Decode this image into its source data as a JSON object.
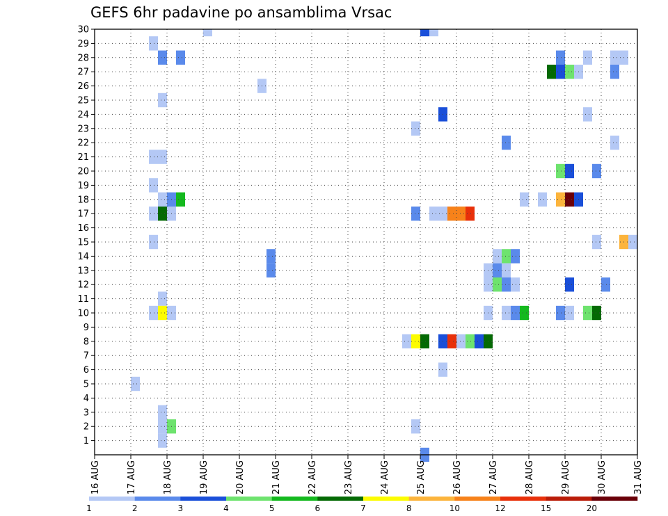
{
  "chart_data": {
    "type": "heatmap",
    "title": "GEFS 6hr padavine po ansamblima Vrsac",
    "x_tick_labels": [
      "16 AUG",
      "17 AUG",
      "18 AUG",
      "19 AUG",
      "20 AUG",
      "21 AUG",
      "22 AUG",
      "23 AUG",
      "24 AUG",
      "25 AUG",
      "26 AUG",
      "27 AUG",
      "28 AUG",
      "29 AUG",
      "30 AUG",
      "31 AUG"
    ],
    "y_tick_labels": [
      "1",
      "2",
      "3",
      "4",
      "5",
      "6",
      "7",
      "8",
      "9",
      "10",
      "11",
      "12",
      "13",
      "14",
      "15",
      "16",
      "17",
      "18",
      "19",
      "20",
      "21",
      "22",
      "23",
      "24",
      "25",
      "26",
      "27",
      "28",
      "29",
      "30"
    ],
    "x_range_days": [
      16,
      31
    ],
    "y_range": [
      0,
      30
    ],
    "grid": true,
    "cell_hours": 6,
    "color_bins": [
      {
        "color": "#b4c8f5"
      },
      {
        "color": "#5a8aeb"
      },
      {
        "color": "#1a4fd9"
      },
      {
        "color": "#6ee36e"
      },
      {
        "color": "#14b91e"
      },
      {
        "color": "#046a04"
      },
      {
        "color": "#fcfc00"
      },
      {
        "color": "#fcb43c"
      },
      {
        "color": "#f7821a"
      },
      {
        "color": "#e8300a"
      },
      {
        "color": "#ba1c08"
      },
      {
        "color": "#6a0008"
      }
    ],
    "colorbar_labels": [
      "1",
      "2",
      "3",
      "4",
      "5",
      "6",
      "7",
      "8",
      "10",
      "12",
      "15",
      "20"
    ],
    "cells": [
      [
        19.0,
        30,
        1
      ],
      [
        25.0,
        30,
        3
      ],
      [
        25.25,
        30,
        1
      ],
      [
        17.5,
        29,
        1
      ],
      [
        17.75,
        28,
        2
      ],
      [
        18.25,
        28,
        2
      ],
      [
        28.75,
        28,
        2
      ],
      [
        29.5,
        28,
        1
      ],
      [
        30.25,
        28,
        1
      ],
      [
        30.5,
        28,
        1
      ],
      [
        28.5,
        27,
        6
      ],
      [
        28.75,
        27,
        3
      ],
      [
        29.0,
        27,
        4
      ],
      [
        29.25,
        27,
        1
      ],
      [
        30.25,
        27,
        2
      ],
      [
        20.5,
        26,
        1
      ],
      [
        17.75,
        25,
        1
      ],
      [
        25.5,
        24,
        3
      ],
      [
        29.5,
        24,
        1
      ],
      [
        24.75,
        23,
        1
      ],
      [
        27.25,
        22,
        2
      ],
      [
        30.25,
        22,
        1
      ],
      [
        17.5,
        21,
        1
      ],
      [
        17.75,
        21,
        1
      ],
      [
        28.75,
        20,
        4
      ],
      [
        29.0,
        20,
        3
      ],
      [
        29.75,
        20,
        2
      ],
      [
        17.5,
        19,
        1
      ],
      [
        17.75,
        18,
        1
      ],
      [
        18.0,
        18,
        2
      ],
      [
        18.25,
        18,
        5
      ],
      [
        27.75,
        18,
        1
      ],
      [
        28.25,
        18,
        1
      ],
      [
        28.75,
        18,
        8
      ],
      [
        29.0,
        18,
        12
      ],
      [
        29.25,
        18,
        3
      ],
      [
        17.5,
        17,
        1
      ],
      [
        17.75,
        17,
        6
      ],
      [
        18.0,
        17,
        1
      ],
      [
        24.75,
        17,
        2
      ],
      [
        25.25,
        17,
        1
      ],
      [
        25.5,
        17,
        1
      ],
      [
        25.75,
        17,
        9
      ],
      [
        26.0,
        17,
        9
      ],
      [
        26.25,
        17,
        10
      ],
      [
        17.5,
        15,
        1
      ],
      [
        29.75,
        15,
        1
      ],
      [
        30.5,
        15,
        8
      ],
      [
        30.75,
        15,
        1
      ],
      [
        20.75,
        14,
        2
      ],
      [
        27.0,
        14,
        1
      ],
      [
        27.25,
        14,
        4
      ],
      [
        27.5,
        14,
        2
      ],
      [
        20.75,
        13,
        2
      ],
      [
        26.75,
        13,
        1
      ],
      [
        27.0,
        13,
        2
      ],
      [
        27.25,
        13,
        1
      ],
      [
        26.75,
        12,
        1
      ],
      [
        27.0,
        12,
        4
      ],
      [
        27.25,
        12,
        2
      ],
      [
        27.5,
        12,
        1
      ],
      [
        29.0,
        12,
        3
      ],
      [
        30.0,
        12,
        2
      ],
      [
        17.75,
        11,
        1
      ],
      [
        17.5,
        10,
        1
      ],
      [
        17.75,
        10,
        7
      ],
      [
        18.0,
        10,
        1
      ],
      [
        26.75,
        10,
        1
      ],
      [
        27.25,
        10,
        1
      ],
      [
        27.5,
        10,
        2
      ],
      [
        27.75,
        10,
        5
      ],
      [
        28.75,
        10,
        2
      ],
      [
        29.0,
        10,
        1
      ],
      [
        29.5,
        10,
        4
      ],
      [
        29.75,
        10,
        6
      ],
      [
        24.5,
        8,
        1
      ],
      [
        24.75,
        8,
        7
      ],
      [
        25.0,
        8,
        6
      ],
      [
        25.5,
        8,
        3
      ],
      [
        25.75,
        8,
        10
      ],
      [
        26.0,
        8,
        1
      ],
      [
        26.25,
        8,
        4
      ],
      [
        26.5,
        8,
        3
      ],
      [
        26.75,
        8,
        6
      ],
      [
        25.5,
        6,
        1
      ],
      [
        17.0,
        5,
        1
      ],
      [
        17.75,
        3,
        1
      ],
      [
        17.75,
        2,
        1
      ],
      [
        18.0,
        2,
        4
      ],
      [
        24.75,
        2,
        1
      ],
      [
        17.75,
        1,
        1
      ],
      [
        25.0,
        0,
        2
      ]
    ]
  }
}
